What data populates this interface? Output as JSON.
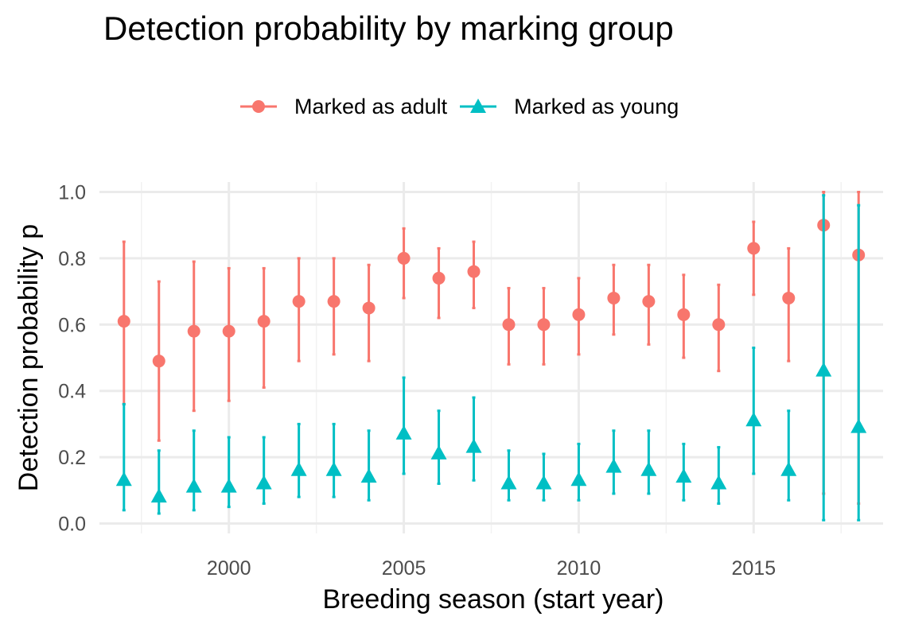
{
  "chart_data": {
    "type": "scatter",
    "title": "Detection probability by marking group",
    "xlabel": "Breeding season (start year)",
    "ylabel": "Detection probability p",
    "xlim": [
      1996.3,
      2018.7
    ],
    "ylim": [
      -0.03,
      1.03
    ],
    "x_ticks": [
      2000,
      2005,
      2010,
      2015
    ],
    "y_ticks": [
      0.0,
      0.2,
      0.4,
      0.6,
      0.8,
      1.0
    ],
    "y_tick_labels": [
      "0.0",
      "0.2",
      "0.4",
      "0.6",
      "0.8",
      "1.0"
    ],
    "grid": true,
    "legend_position": "top",
    "x": [
      1997,
      1998,
      1999,
      2000,
      2001,
      2002,
      2003,
      2004,
      2005,
      2006,
      2007,
      2008,
      2009,
      2010,
      2011,
      2012,
      2013,
      2014,
      2015,
      2016,
      2017,
      2018
    ],
    "series": [
      {
        "name": "Marked as adult",
        "color": "#F8766D",
        "marker": "circle",
        "values": [
          0.61,
          0.49,
          0.58,
          0.58,
          0.61,
          0.67,
          0.67,
          0.65,
          0.8,
          0.74,
          0.76,
          0.6,
          0.6,
          0.63,
          0.68,
          0.67,
          0.63,
          0.6,
          0.83,
          0.68,
          0.9,
          0.81
        ],
        "lower": [
          0.36,
          0.25,
          0.34,
          0.37,
          0.41,
          0.49,
          0.51,
          0.49,
          0.68,
          0.62,
          0.65,
          0.48,
          0.48,
          0.51,
          0.57,
          0.54,
          0.5,
          0.46,
          0.69,
          0.49,
          0.09,
          0.06
        ],
        "upper": [
          0.85,
          0.73,
          0.79,
          0.77,
          0.77,
          0.8,
          0.8,
          0.78,
          0.89,
          0.83,
          0.85,
          0.71,
          0.71,
          0.74,
          0.78,
          0.78,
          0.75,
          0.72,
          0.91,
          0.83,
          1.0,
          1.0
        ]
      },
      {
        "name": "Marked as young",
        "color": "#00BFC4",
        "marker": "triangle",
        "values": [
          0.13,
          0.08,
          0.11,
          0.11,
          0.12,
          0.16,
          0.16,
          0.14,
          0.27,
          0.21,
          0.23,
          0.12,
          0.12,
          0.13,
          0.17,
          0.16,
          0.14,
          0.12,
          0.31,
          0.16,
          0.46,
          0.29
        ],
        "lower": [
          0.04,
          0.03,
          0.04,
          0.05,
          0.06,
          0.08,
          0.08,
          0.07,
          0.15,
          0.12,
          0.13,
          0.07,
          0.07,
          0.07,
          0.09,
          0.09,
          0.07,
          0.06,
          0.15,
          0.07,
          0.01,
          0.01
        ],
        "upper": [
          0.36,
          0.22,
          0.28,
          0.26,
          0.26,
          0.3,
          0.3,
          0.28,
          0.44,
          0.34,
          0.38,
          0.22,
          0.21,
          0.24,
          0.28,
          0.28,
          0.24,
          0.23,
          0.53,
          0.34,
          0.99,
          0.96
        ]
      }
    ]
  }
}
